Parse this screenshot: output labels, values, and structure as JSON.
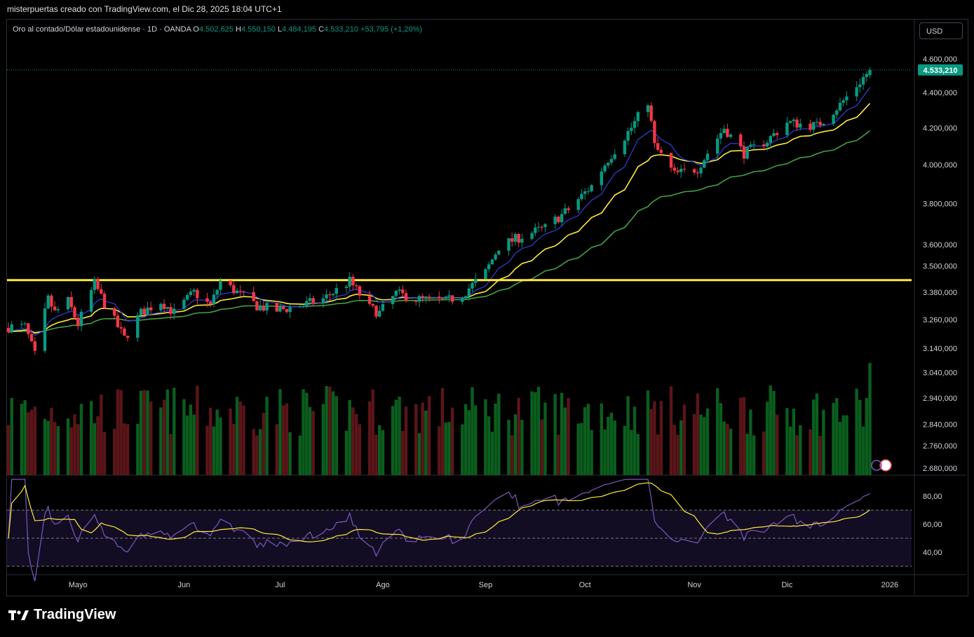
{
  "header": {
    "caption": "misterpuertas creado con TradingView.com, el Dic 28, 2025 18:04 UTC+1"
  },
  "legend": {
    "symbol": "Oro al contado/Dólar estadounidense · 1D · OANDA",
    "open_label": "O",
    "open": "4.502,625",
    "high_label": "H",
    "high": "4.550,150",
    "low_label": "L",
    "low": "4.484,195",
    "close_label": "C",
    "close": "4.533,210",
    "change": "+53,795 (+1,20%)"
  },
  "currency_button": "USD",
  "price_badge": "4.533,210",
  "brand": {
    "name": "TradingView"
  },
  "colors": {
    "up": "#089981",
    "down": "#f23645",
    "vol_up": "#0b5e1e",
    "vol_down": "#5b1519",
    "ema_fast": "#2f3ad0",
    "ema_mid": "#ffeb3b",
    "ema_slow": "#43a047",
    "level": "#ffeb3b",
    "rsi": "#7e57c2",
    "rsi_ma": "#ffeb3b"
  },
  "chart_data": {
    "type": "candlestick",
    "title": "Oro al contado/Dólar estadounidense",
    "interval": "1D",
    "y_scale": "log",
    "price_ticks": [
      "4.600,000",
      "4.400,000",
      "4.200,000",
      "4.000,000",
      "3.800,000",
      "3.600,000",
      "3.500,000",
      "3.380,000",
      "3.260,000",
      "3.140,000",
      "3.040,000",
      "2.940,000",
      "2.840,000",
      "2.760,000",
      "2.680,000"
    ],
    "price_tick_values": [
      4600,
      4400,
      4200,
      4000,
      3800,
      3600,
      3500,
      3380,
      3260,
      3140,
      3040,
      2940,
      2840,
      2760,
      2680
    ],
    "x_labels": [
      "Mayo",
      "Jun",
      "Jul",
      "Ago",
      "Sep",
      "Oct",
      "Nov",
      "Dic",
      "2026"
    ],
    "x_label_dates": [
      "2025-05-01",
      "2025-06-02",
      "2025-07-01",
      "2025-08-01",
      "2025-09-01",
      "2025-10-01",
      "2025-11-03",
      "2025-12-01",
      "2026-01-01"
    ],
    "horizontal_level": 3435,
    "rsi": {
      "ticks": [
        "80,00",
        "60,00",
        "40,00"
      ],
      "tick_values": [
        80,
        60,
        40
      ],
      "upper": 70,
      "middle": 50,
      "lower": 30
    },
    "close_keypoints": [
      {
        "date": "2025-04-15",
        "close": 3230
      },
      {
        "date": "2025-04-18",
        "close": 3110
      },
      {
        "date": "2025-04-22",
        "close": 3350
      },
      {
        "date": "2025-04-24",
        "close": 3290
      },
      {
        "date": "2025-04-28",
        "close": 3340
      },
      {
        "date": "2025-05-01",
        "close": 3240
      },
      {
        "date": "2025-05-06",
        "close": 3420
      },
      {
        "date": "2025-05-09",
        "close": 3330
      },
      {
        "date": "2025-05-15",
        "close": 3180
      },
      {
        "date": "2025-05-20",
        "close": 3290
      },
      {
        "date": "2025-05-26",
        "close": 3340
      },
      {
        "date": "2025-05-30",
        "close": 3290
      },
      {
        "date": "2025-06-05",
        "close": 3380
      },
      {
        "date": "2025-06-10",
        "close": 3320
      },
      {
        "date": "2025-06-13",
        "close": 3430
      },
      {
        "date": "2025-06-16",
        "close": 3400
      },
      {
        "date": "2025-06-24",
        "close": 3320
      },
      {
        "date": "2025-06-30",
        "close": 3300
      },
      {
        "date": "2025-07-07",
        "close": 3320
      },
      {
        "date": "2025-07-14",
        "close": 3350
      },
      {
        "date": "2025-07-22",
        "close": 3430
      },
      {
        "date": "2025-07-28",
        "close": 3310
      },
      {
        "date": "2025-07-31",
        "close": 3290
      },
      {
        "date": "2025-08-05",
        "close": 3375
      },
      {
        "date": "2025-08-11",
        "close": 3350
      },
      {
        "date": "2025-08-20",
        "close": 3340
      },
      {
        "date": "2025-08-25",
        "close": 3370
      },
      {
        "date": "2025-09-01",
        "close": 3470
      },
      {
        "date": "2025-09-05",
        "close": 3590
      },
      {
        "date": "2025-09-12",
        "close": 3640
      },
      {
        "date": "2025-09-19",
        "close": 3680
      },
      {
        "date": "2025-09-26",
        "close": 3770
      },
      {
        "date": "2025-10-03",
        "close": 3890
      },
      {
        "date": "2025-10-08",
        "close": 4030
      },
      {
        "date": "2025-10-15",
        "close": 4200
      },
      {
        "date": "2025-10-20",
        "close": 4350
      },
      {
        "date": "2025-10-22",
        "close": 4100
      },
      {
        "date": "2025-10-28",
        "close": 3950
      },
      {
        "date": "2025-11-04",
        "close": 3980
      },
      {
        "date": "2025-11-12",
        "close": 4200
      },
      {
        "date": "2025-11-18",
        "close": 4060
      },
      {
        "date": "2025-11-25",
        "close": 4130
      },
      {
        "date": "2025-12-01",
        "close": 4230
      },
      {
        "date": "2025-12-10",
        "close": 4210
      },
      {
        "date": "2025-12-17",
        "close": 4330
      },
      {
        "date": "2025-12-22",
        "close": 4440
      },
      {
        "date": "2025-12-26",
        "close": 4533
      }
    ]
  }
}
